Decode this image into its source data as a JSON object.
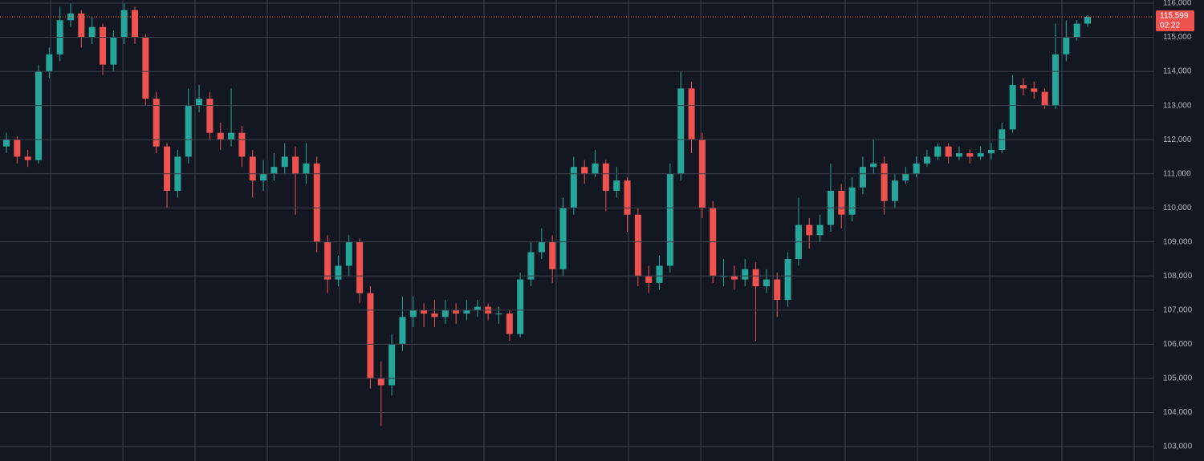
{
  "chart_data": {
    "type": "candlestick",
    "up_color": "#26a69a",
    "down_color": "#ef5350",
    "ylim": [
      102577,
      116094
    ],
    "yticks": [
      {
        "value": 103000,
        "label": "103,000"
      },
      {
        "value": 104000,
        "label": "104,000"
      },
      {
        "value": 105000,
        "label": "105,000"
      },
      {
        "value": 106000,
        "label": "106,000"
      },
      {
        "value": 107000,
        "label": "107,000"
      },
      {
        "value": 108000,
        "label": "108,000"
      },
      {
        "value": 109000,
        "label": "109,000"
      },
      {
        "value": 110000,
        "label": "110,000"
      },
      {
        "value": 111000,
        "label": "111,000"
      },
      {
        "value": 112000,
        "label": "112,000"
      },
      {
        "value": 113000,
        "label": "113,000"
      },
      {
        "value": 114000,
        "label": "114,000"
      },
      {
        "value": 115000,
        "label": "115,000"
      },
      {
        "value": 116000,
        "label": "116,000"
      }
    ],
    "grid": true,
    "last_price": {
      "value": 115599,
      "label": "115,599"
    },
    "countdown": "02:22",
    "open": [
      111800,
      112000,
      111500,
      111400,
      114000,
      114500,
      115500,
      115700,
      115000,
      115300,
      114200,
      115000,
      115800,
      115000,
      113200,
      111800,
      110500,
      111500,
      113000,
      113200,
      112200,
      112000,
      112200,
      111500,
      110800,
      111000,
      111200,
      111500,
      111000,
      111300,
      109000,
      107900,
      108300,
      109000,
      107500,
      105000,
      104800,
      106000,
      106800,
      107000,
      106900,
      106800,
      107000,
      106900,
      107000,
      107100,
      106900,
      106900,
      106300,
      107900,
      108700,
      109000,
      108200,
      110000,
      111200,
      111000,
      111300,
      110500,
      110800,
      109800,
      108000,
      107800,
      108300,
      111000,
      113500,
      112000,
      110000,
      108000,
      108000,
      107900,
      108200,
      107700,
      107900,
      107300,
      108500,
      109500,
      109200,
      109500,
      110500,
      109800,
      110600,
      111200,
      111300,
      110200,
      110800,
      111000,
      111300,
      111500,
      111800,
      111500,
      111600,
      111500,
      111600,
      111700,
      112300,
      113600,
      113500,
      113400,
      113000,
      114500,
      115000,
      115400
    ],
    "high": [
      112200,
      112100,
      111700,
      114200,
      114700,
      115900,
      116000,
      115800,
      115600,
      115400,
      115200,
      116000,
      115900,
      115100,
      113400,
      111900,
      111700,
      113500,
      113600,
      113400,
      112500,
      113500,
      112400,
      111700,
      111400,
      111600,
      111900,
      111800,
      111900,
      111500,
      109200,
      108600,
      109200,
      109100,
      107700,
      105500,
      106300,
      107400,
      107400,
      107200,
      107300,
      107300,
      107200,
      107300,
      107300,
      107200,
      107100,
      107000,
      108100,
      109000,
      109400,
      109200,
      110300,
      111500,
      111400,
      111700,
      111400,
      111200,
      110900,
      110000,
      108300,
      108600,
      111300,
      114000,
      113700,
      112200,
      110200,
      108500,
      108300,
      108500,
      108400,
      108200,
      108100,
      108700,
      110300,
      109700,
      109800,
      111300,
      110700,
      110900,
      111500,
      112000,
      111500,
      111000,
      111200,
      111500,
      111700,
      111900,
      111900,
      111800,
      111700,
      111800,
      111900,
      112500,
      113900,
      113800,
      113700,
      113500,
      115400,
      115500,
      115500,
      115650
    ],
    "low": [
      111600,
      111300,
      111200,
      111300,
      113800,
      114300,
      115300,
      114700,
      114800,
      113900,
      114000,
      114800,
      114800,
      113000,
      111600,
      110000,
      110300,
      111300,
      112800,
      112000,
      111700,
      111800,
      111200,
      110300,
      110500,
      110800,
      111000,
      109800,
      110700,
      108700,
      107500,
      107700,
      108000,
      107200,
      104700,
      103600,
      104500,
      105800,
      106500,
      106500,
      106500,
      106600,
      106600,
      106700,
      106800,
      106700,
      106600,
      106100,
      106200,
      107700,
      108500,
      107800,
      108000,
      109800,
      110700,
      110900,
      109900,
      110300,
      109300,
      107700,
      107500,
      107600,
      108100,
      110800,
      111600,
      109700,
      107800,
      107700,
      107600,
      107700,
      106100,
      107500,
      106800,
      107100,
      108300,
      108800,
      109000,
      109300,
      109400,
      109600,
      110400,
      111000,
      109800,
      110000,
      110700,
      110900,
      111200,
      111400,
      111300,
      111400,
      111300,
      111400,
      111400,
      111600,
      112200,
      113300,
      113200,
      112900,
      112900,
      114300,
      114900,
      115300
    ],
    "close": [
      112000,
      111500,
      111400,
      114000,
      114500,
      115500,
      115700,
      115000,
      115300,
      114200,
      115000,
      115800,
      115000,
      113200,
      111800,
      110500,
      111500,
      113000,
      113200,
      112200,
      112000,
      112200,
      111500,
      110800,
      111000,
      111200,
      111500,
      111000,
      111300,
      109000,
      107900,
      108300,
      109000,
      107500,
      105000,
      104800,
      106000,
      106800,
      107000,
      106900,
      106800,
      107000,
      106900,
      107000,
      107100,
      106900,
      106900,
      106300,
      107900,
      108700,
      109000,
      108200,
      110000,
      111200,
      111000,
      111300,
      110500,
      110800,
      109800,
      108000,
      107800,
      108300,
      111000,
      113500,
      112000,
      110000,
      108000,
      108000,
      107900,
      108200,
      107700,
      107900,
      107300,
      108500,
      109500,
      109200,
      109500,
      110500,
      109800,
      110600,
      111200,
      111300,
      110200,
      110800,
      111000,
      111300,
      111500,
      111800,
      111500,
      111600,
      111500,
      111600,
      111700,
      112300,
      113600,
      113500,
      113400,
      113000,
      114500,
      115000,
      115400,
      115599
    ]
  }
}
